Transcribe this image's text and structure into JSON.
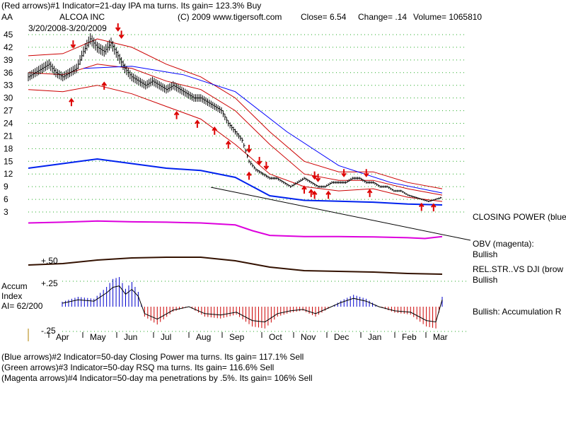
{
  "header": {
    "line1_left": "(Red arrows)#1 Indicator=21-day IPA ma turns. Its gain= 123.3% Buy",
    "ticker": "AA",
    "company": "ALCOA INC",
    "copyright": "(C) 2009 www.tigersoft.com",
    "close": "Close=  6.54",
    "change": "Change= .14",
    "volume": "Volume= 1065810",
    "date_range": "3/20/2008-3/20/2009"
  },
  "footer": {
    "line1": "(Blue arrows)#2 Indicator=50-day Closing Power ma turns. Its gain= 117.1% Sell",
    "line2": "(Green arrows)#3 Indicator=50-day RSQ ma turns. Its gain= 116.6% Sell",
    "line3": "(Magenta arrows)#4 Indicator=50-day ma penetrations by .5%. Its gain= 106% Sell"
  },
  "side_labels": {
    "closing_power": "CLOSING POWER (blue",
    "obv": "OBV (magenta):",
    "obv_status": "Bullish",
    "relstr": "REL.STR..VS DJI (brow",
    "relstr_status": "Bullish",
    "accum_status": "Bullish: Accumulation R"
  },
  "accum_panel": {
    "title1": "Accum",
    "title2": "Index",
    "ai": "AI= 62/200",
    "tick_top": "+.25",
    "tick_bottom": "-.25",
    "relstr_tick": "+.50"
  },
  "chart_data": {
    "type": "line",
    "x_months": [
      "Apr",
      "May",
      "Jun",
      "Jul",
      "Aug",
      "Sep",
      "Oct",
      "Nov",
      "Dec",
      "Jan",
      "Feb",
      "Mar"
    ],
    "y_ticks": [
      45,
      42,
      39,
      36,
      33,
      30,
      27,
      24,
      21,
      18,
      15,
      12,
      9,
      6,
      3
    ],
    "ylim": [
      3,
      45
    ],
    "grid": true,
    "price_series": {
      "name": "AA daily close",
      "points": [
        [
          0,
          35
        ],
        [
          4,
          36
        ],
        [
          8,
          37
        ],
        [
          12,
          38
        ],
        [
          16,
          36
        ],
        [
          20,
          35
        ],
        [
          24,
          36
        ],
        [
          28,
          37
        ],
        [
          32,
          41
        ],
        [
          36,
          44
        ],
        [
          40,
          42
        ],
        [
          44,
          41
        ],
        [
          48,
          43
        ],
        [
          52,
          40
        ],
        [
          56,
          37
        ],
        [
          60,
          35
        ],
        [
          64,
          34
        ],
        [
          68,
          33
        ],
        [
          72,
          34
        ],
        [
          76,
          33
        ],
        [
          80,
          32
        ],
        [
          84,
          33
        ],
        [
          88,
          32
        ],
        [
          92,
          31
        ],
        [
          96,
          30
        ],
        [
          100,
          30
        ],
        [
          104,
          29
        ],
        [
          108,
          28
        ],
        [
          112,
          27
        ],
        [
          116,
          24
        ],
        [
          120,
          22
        ],
        [
          124,
          20
        ],
        [
          128,
          15
        ],
        [
          132,
          13
        ],
        [
          136,
          12
        ],
        [
          140,
          11
        ],
        [
          144,
          11
        ],
        [
          148,
          10
        ],
        [
          152,
          9
        ],
        [
          156,
          10
        ],
        [
          160,
          11
        ],
        [
          164,
          10
        ],
        [
          168,
          9
        ],
        [
          172,
          9
        ],
        [
          176,
          10
        ],
        [
          180,
          10
        ],
        [
          184,
          10
        ],
        [
          188,
          11
        ],
        [
          192,
          11
        ],
        [
          196,
          10
        ],
        [
          200,
          10
        ],
        [
          204,
          9
        ],
        [
          208,
          9
        ],
        [
          212,
          8
        ],
        [
          216,
          8
        ],
        [
          220,
          7
        ],
        [
          224,
          6.5
        ],
        [
          228,
          6
        ],
        [
          232,
          5.5
        ],
        [
          236,
          6
        ],
        [
          240,
          6.5
        ]
      ]
    },
    "ma_center": [
      [
        0,
        36
      ],
      [
        20,
        35.5
      ],
      [
        40,
        38
      ],
      [
        60,
        37
      ],
      [
        80,
        34
      ],
      [
        100,
        32
      ],
      [
        120,
        27
      ],
      [
        140,
        19
      ],
      [
        160,
        12
      ],
      [
        180,
        10.5
      ],
      [
        200,
        10.5
      ],
      [
        220,
        8.5
      ],
      [
        240,
        7
      ]
    ],
    "ma_upper": [
      [
        0,
        40
      ],
      [
        20,
        40.5
      ],
      [
        40,
        44
      ],
      [
        60,
        42
      ],
      [
        80,
        38
      ],
      [
        100,
        35
      ],
      [
        120,
        30
      ],
      [
        140,
        22
      ],
      [
        160,
        15
      ],
      [
        180,
        12.5
      ],
      [
        200,
        12.5
      ],
      [
        220,
        10
      ],
      [
        240,
        8.5
      ]
    ],
    "ma_lower": [
      [
        0,
        32
      ],
      [
        20,
        31.5
      ],
      [
        40,
        33
      ],
      [
        60,
        31
      ],
      [
        80,
        28
      ],
      [
        100,
        25
      ],
      [
        120,
        19
      ],
      [
        140,
        12
      ],
      [
        160,
        9
      ],
      [
        180,
        8
      ],
      [
        200,
        8.5
      ],
      [
        220,
        6.5
      ],
      [
        240,
        5.5
      ]
    ],
    "ma_long": [
      [
        32,
        37
      ],
      [
        60,
        37.5
      ],
      [
        90,
        35.5
      ],
      [
        120,
        31.5
      ],
      [
        150,
        22
      ],
      [
        180,
        14
      ],
      [
        210,
        10
      ],
      [
        240,
        7.5
      ]
    ],
    "sell_arrows_x": [
      26,
      52,
      54,
      128,
      134,
      138,
      166,
      168,
      183,
      196
    ],
    "buy_arrows_x": [
      25,
      44,
      86,
      98,
      108,
      116,
      128,
      160,
      164,
      166,
      174,
      198,
      228,
      235
    ],
    "closing_power": [
      [
        0,
        12
      ],
      [
        20,
        13
      ],
      [
        40,
        14
      ],
      [
        60,
        13
      ],
      [
        80,
        12
      ],
      [
        100,
        11.5
      ],
      [
        120,
        10
      ],
      [
        130,
        8
      ],
      [
        140,
        6
      ],
      [
        160,
        5
      ],
      [
        180,
        4.8
      ],
      [
        200,
        4.6
      ],
      [
        220,
        4.2
      ],
      [
        240,
        4
      ]
    ],
    "obv": [
      [
        0,
        5
      ],
      [
        20,
        5.2
      ],
      [
        40,
        5.5
      ],
      [
        60,
        5.3
      ],
      [
        80,
        5.2
      ],
      [
        100,
        5
      ],
      [
        120,
        4.5
      ],
      [
        130,
        3
      ],
      [
        140,
        1.8
      ],
      [
        160,
        1.5
      ],
      [
        180,
        1.5
      ],
      [
        200,
        1.4
      ],
      [
        220,
        1.2
      ],
      [
        230,
        1
      ],
      [
        240,
        1.5
      ]
    ],
    "rel_str": [
      [
        0,
        -1
      ],
      [
        20,
        -0.8
      ],
      [
        40,
        -0.3
      ],
      [
        60,
        0
      ],
      [
        80,
        0.1
      ],
      [
        100,
        0.1
      ],
      [
        120,
        -0.4
      ],
      [
        140,
        -1.3
      ],
      [
        160,
        -1.8
      ],
      [
        180,
        -1.9
      ],
      [
        200,
        -2
      ],
      [
        220,
        -2.2
      ],
      [
        240,
        -2.3
      ]
    ],
    "accum_index": [
      [
        0,
        0.05
      ],
      [
        10,
        0.1
      ],
      [
        20,
        0.08
      ],
      [
        28,
        0.2
      ],
      [
        32,
        0.28
      ],
      [
        36,
        0.3
      ],
      [
        40,
        0.18
      ],
      [
        44,
        0.25
      ],
      [
        48,
        0.15
      ],
      [
        52,
        -0.1
      ],
      [
        60,
        -0.18
      ],
      [
        70,
        -0.05
      ],
      [
        80,
        0
      ],
      [
        90,
        -0.1
      ],
      [
        100,
        -0.12
      ],
      [
        110,
        -0.08
      ],
      [
        120,
        -0.2
      ],
      [
        128,
        -0.22
      ],
      [
        136,
        -0.1
      ],
      [
        144,
        -0.06
      ],
      [
        152,
        -0.04
      ],
      [
        160,
        -0.1
      ],
      [
        168,
        -0.02
      ],
      [
        176,
        0.06
      ],
      [
        184,
        0.12
      ],
      [
        192,
        0.08
      ],
      [
        200,
        0
      ],
      [
        210,
        -0.06
      ],
      [
        220,
        -0.08
      ],
      [
        230,
        -0.2
      ],
      [
        236,
        -0.22
      ],
      [
        240,
        0.1
      ]
    ]
  }
}
